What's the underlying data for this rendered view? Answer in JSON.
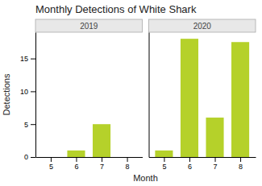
{
  "chart_data": [
    {
      "type": "bar",
      "title": "Monthly Detections of White Shark",
      "subtitle": "2019",
      "xlabel": "Month",
      "ylabel": "Detections",
      "x": [
        5,
        6,
        7,
        8
      ],
      "values": [
        0,
        1,
        5,
        0
      ],
      "color": "#b5d12a",
      "xlim": [
        4.4,
        8.6
      ],
      "xticks": [
        5,
        6,
        7,
        8
      ],
      "ylim": [
        0,
        19
      ],
      "yticks": [
        0,
        5,
        10,
        15
      ],
      "grid": false
    },
    {
      "type": "bar",
      "subtitle": "2020",
      "x": [
        5,
        6,
        7,
        8
      ],
      "values": [
        1,
        18,
        6,
        17.5
      ],
      "color": "#b5d12a",
      "xlim": [
        4.4,
        8.6
      ],
      "xticks": [
        5,
        6,
        7,
        8
      ],
      "ylim": [
        0,
        19
      ],
      "grid": false,
      "tick_labels": "x"
    }
  ]
}
